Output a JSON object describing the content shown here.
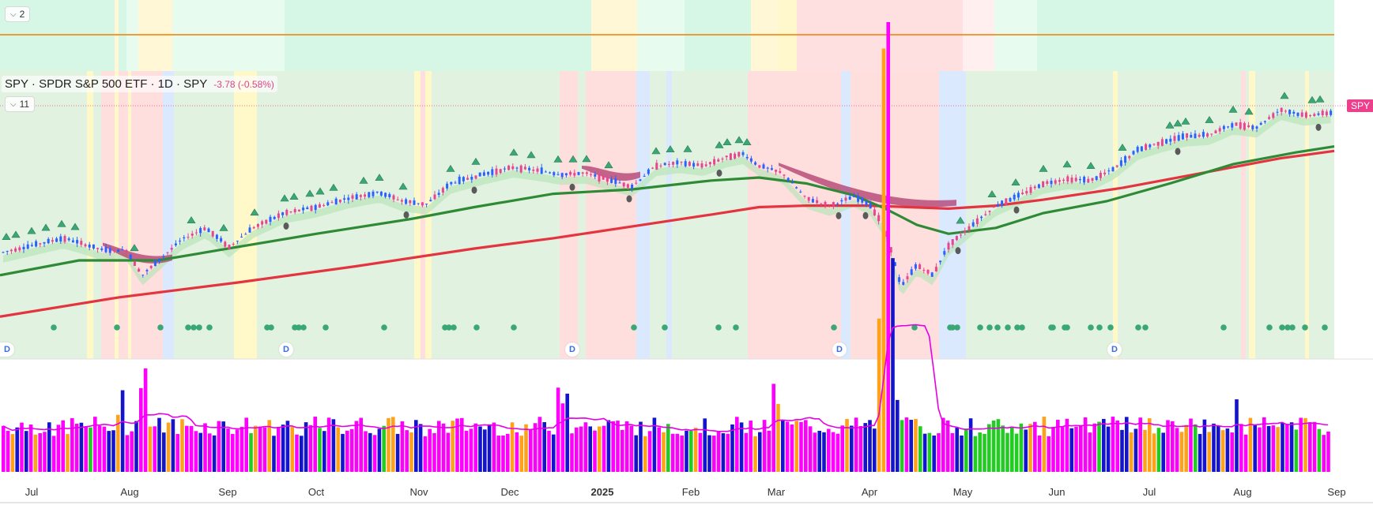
{
  "top_pane": {
    "collapsed_label": "2"
  },
  "main_pane": {
    "indicators_label": "11",
    "legend": {
      "title": "SPY · SPDR S&P 500 ETF · 1D · SPY",
      "change": "-3.78 (-0.58%)"
    },
    "price_tag": "SPY",
    "d_marker": "D"
  },
  "colors": {
    "sma50": "#2f8a36",
    "sma200": "#e3343f",
    "up_candle": "#2962ff",
    "down_candle": "#e8458f",
    "ribbon_light": "#b9e4b9",
    "ribbon_dark": "#b0396e",
    "volume_magenta": "#ff00ff",
    "volume_blue": "#1414cc",
    "volume_orange": "#ffa21a",
    "volume_green": "#22cc22",
    "volume_ma": "#e600e6",
    "top_line": "#f07d00"
  },
  "chart_data": {
    "type": "candlestick",
    "title": "SPY · SPDR S&P 500 ETF · 1D · SPY",
    "x": [
      "Jul",
      "Aug",
      "Sep",
      "Oct",
      "Nov",
      "Dec",
      "2025",
      "Feb",
      "Mar",
      "Apr",
      "May",
      "Jun",
      "Jul",
      "Aug",
      "Sep"
    ],
    "series": [
      {
        "name": "SPY",
        "values": [
          544,
          554,
          560,
          573,
          585,
          600,
          592,
          608,
          585,
          560,
          588,
          596,
          622,
          630,
          645
        ]
      }
    ]
  }
}
